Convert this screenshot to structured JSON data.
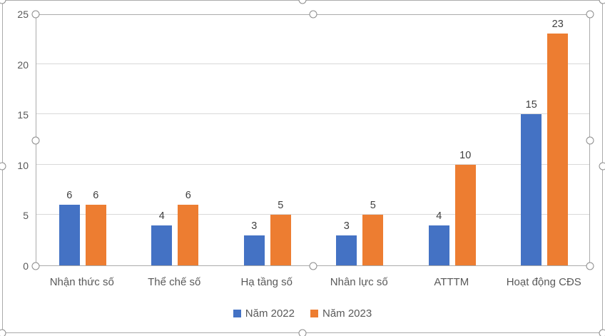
{
  "chart_data": {
    "type": "bar",
    "title": "",
    "xlabel": "",
    "ylabel": "",
    "categories": [
      "Nhận thức số",
      "Thể chế số",
      "Hạ tầng số",
      "Nhân lực số",
      "ATTTM",
      "Hoạt động CĐS"
    ],
    "series": [
      {
        "name": "Năm 2022",
        "color": "#4472C4",
        "values": [
          6,
          4,
          3,
          3,
          4,
          15
        ]
      },
      {
        "name": "Năm 2023",
        "color": "#ED7D31",
        "values": [
          6,
          6,
          5,
          5,
          10,
          23
        ]
      }
    ],
    "ylim": [
      0,
      25
    ],
    "yticks": [
      0,
      5,
      10,
      15,
      20,
      25
    ],
    "grid": true,
    "data_labels": true,
    "legend": {
      "position": "bottom",
      "entries": [
        "Năm 2022",
        "Năm 2023"
      ]
    },
    "style": {
      "background": "#FFFFFF",
      "grid_color": "#D9D9D9",
      "axis_color": "#ABABAB",
      "selection_border_color": "#ABABAB",
      "handle_stroke_color": "#8C8C8C",
      "tick_label_color": "#595959",
      "data_label_color": "#404040",
      "legend_text_color": "#595959"
    },
    "selection": {
      "chart_area_selected": true,
      "plot_area_selected": true
    }
  }
}
